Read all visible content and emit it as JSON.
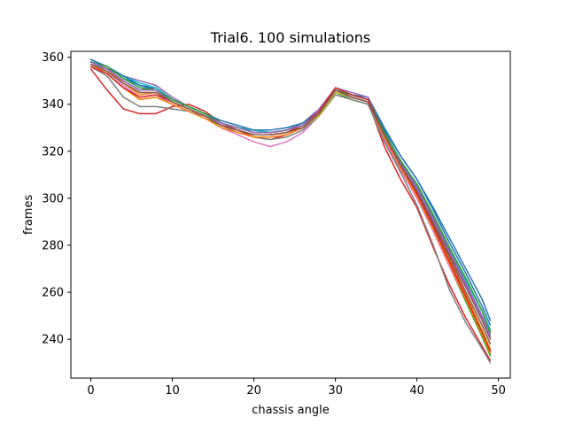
{
  "chart_data": {
    "type": "line",
    "title": "Trial6. 100 simulations",
    "xlabel": "chassis angle",
    "ylabel": "frames",
    "xlim": [
      -2.45,
      51.45
    ],
    "ylim": [
      223.5,
      362.5
    ],
    "xticks": [
      0,
      10,
      20,
      30,
      40,
      50
    ],
    "yticks": [
      240,
      260,
      280,
      300,
      320,
      340,
      360
    ],
    "grid": false,
    "legend": "none",
    "series_count": 100,
    "colors": [
      "#1f77b4",
      "#ff7f0e",
      "#2ca02c",
      "#d62728",
      "#9467bd",
      "#8c564b",
      "#e377c2",
      "#7f7f7f",
      "#bcbd22",
      "#17becf"
    ],
    "x": [
      0,
      2,
      4,
      6,
      8,
      10,
      12,
      14,
      16,
      18,
      20,
      22,
      24,
      26,
      28,
      30,
      32,
      34,
      36,
      38,
      40,
      42,
      44,
      46,
      48,
      49
    ],
    "series": [
      {
        "values": [
          359,
          356,
          351,
          348,
          347,
          342,
          339,
          336,
          332,
          330,
          329,
          328,
          329,
          331,
          336,
          346,
          344,
          343,
          330,
          318,
          308,
          295,
          281,
          268,
          254,
          246
        ]
      },
      {
        "values": [
          358,
          355,
          349,
          344,
          345,
          341,
          338,
          335,
          331,
          329,
          327,
          327,
          328,
          330,
          335,
          345,
          343,
          341,
          326,
          314,
          303,
          289,
          274,
          259,
          244,
          236
        ]
      },
      {
        "values": [
          356,
          353,
          347,
          342,
          343,
          340,
          337,
          334,
          331,
          329,
          327,
          327,
          328,
          330,
          335,
          345,
          342,
          340,
          326,
          313,
          300,
          286,
          271,
          256,
          241,
          233
        ]
      },
      {
        "values": [
          355,
          346,
          338,
          336,
          336,
          339,
          340,
          337,
          332,
          329,
          326,
          325,
          327,
          330,
          336,
          346,
          343,
          341,
          322,
          308,
          296,
          279,
          263,
          249,
          237,
          231
        ]
      },
      {
        "values": [
          357,
          355,
          352,
          350,
          348,
          343,
          339,
          336,
          332,
          330,
          329,
          328,
          329,
          332,
          338,
          347,
          345,
          343,
          328,
          316,
          305,
          292,
          278,
          264,
          250,
          242
        ]
      },
      {
        "values": [
          358,
          355,
          350,
          346,
          347,
          342,
          339,
          336,
          332,
          330,
          328,
          328,
          329,
          331,
          336,
          346,
          344,
          342,
          327,
          315,
          304,
          290,
          276,
          262,
          248,
          240
        ]
      },
      {
        "values": [
          357,
          354,
          348,
          343,
          344,
          340,
          337,
          334,
          330,
          327,
          324,
          322,
          324,
          328,
          335,
          345,
          343,
          341,
          325,
          312,
          300,
          286,
          271,
          257,
          243,
          235
        ]
      },
      {
        "values": [
          356,
          352,
          343,
          339,
          339,
          338,
          337,
          335,
          331,
          328,
          326,
          325,
          326,
          329,
          335,
          344,
          342,
          340,
          324,
          311,
          297,
          280,
          261,
          247,
          236,
          230
        ]
      },
      {
        "values": [
          357,
          354,
          349,
          345,
          345,
          341,
          338,
          335,
          331,
          329,
          327,
          327,
          328,
          330,
          335,
          345,
          343,
          341,
          327,
          314,
          302,
          288,
          273,
          258,
          244,
          236
        ]
      },
      {
        "values": [
          358,
          356,
          352,
          349,
          347,
          342,
          339,
          336,
          332,
          330,
          329,
          328,
          329,
          331,
          336,
          346,
          344,
          342,
          328,
          316,
          306,
          293,
          279,
          265,
          252,
          244
        ]
      },
      {
        "values": [
          359,
          356,
          352,
          348,
          346,
          342,
          339,
          336,
          333,
          331,
          329,
          329,
          330,
          332,
          337,
          347,
          344,
          342,
          329,
          318,
          308,
          296,
          283,
          270,
          257,
          248
        ]
      },
      {
        "values": [
          357,
          353,
          347,
          342,
          343,
          340,
          337,
          334,
          330,
          328,
          326,
          326,
          327,
          330,
          336,
          346,
          343,
          341,
          326,
          313,
          301,
          287,
          272,
          257,
          242,
          234
        ]
      },
      {
        "values": [
          358,
          356,
          351,
          347,
          346,
          342,
          339,
          336,
          332,
          330,
          328,
          328,
          329,
          331,
          336,
          346,
          344,
          342,
          328,
          316,
          306,
          293,
          279,
          266,
          252,
          243
        ]
      },
      {
        "values": [
          356,
          353,
          347,
          343,
          344,
          341,
          338,
          335,
          331,
          329,
          327,
          327,
          328,
          331,
          337,
          347,
          344,
          342,
          327,
          314,
          302,
          288,
          273,
          258,
          243,
          235
        ]
      },
      {
        "values": [
          358,
          355,
          350,
          346,
          346,
          341,
          338,
          335,
          332,
          330,
          328,
          328,
          329,
          331,
          336,
          346,
          343,
          341,
          327,
          315,
          304,
          291,
          277,
          263,
          249,
          241
        ]
      },
      {
        "values": [
          357,
          354,
          349,
          345,
          345,
          341,
          338,
          335,
          331,
          329,
          327,
          327,
          328,
          330,
          336,
          346,
          343,
          341,
          327,
          314,
          303,
          289,
          275,
          260,
          246,
          238
        ]
      }
    ]
  }
}
